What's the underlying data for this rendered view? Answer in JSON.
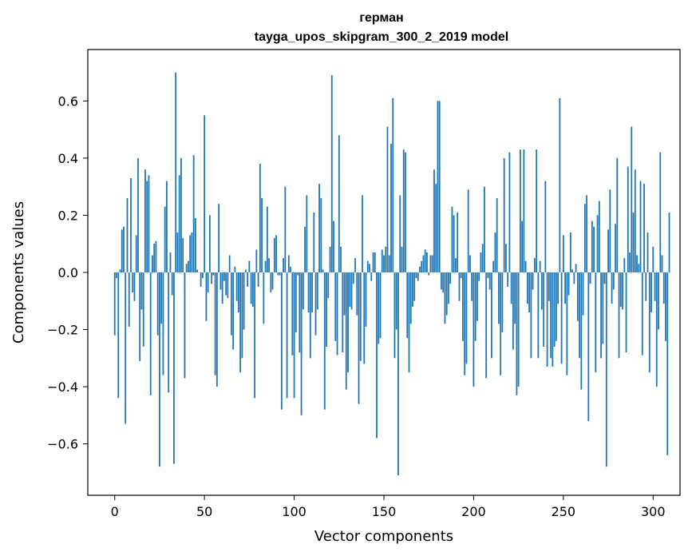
{
  "chart_data": {
    "type": "bar",
    "title": "герман",
    "subtitle": "tayga_upos_skipgram_300_2_2019 model",
    "xlabel": "Vector components",
    "ylabel": "Components values",
    "xlim": [
      -15,
      315
    ],
    "ylim": [
      -0.78,
      0.78
    ],
    "x_ticks": [
      0,
      50,
      100,
      150,
      200,
      250,
      300
    ],
    "y_ticks": [
      -0.6,
      -0.4,
      -0.2,
      0.0,
      0.2,
      0.4,
      0.6
    ],
    "y_tick_labels": [
      "−0.6",
      "−0.4",
      "−0.2",
      "0.0",
      "0.2",
      "0.4",
      "0.6"
    ],
    "x_tick_labels": [
      "0",
      "50",
      "100",
      "150",
      "200",
      "250",
      "300"
    ],
    "bar_color": "#1f77b4",
    "grid": false,
    "values": [
      -0.22,
      -0.02,
      -0.44,
      0.01,
      0.15,
      0.16,
      -0.53,
      0.26,
      -0.19,
      0.33,
      -0.07,
      -0.1,
      0.13,
      0.4,
      -0.31,
      -0.13,
      -0.26,
      0.36,
      0.32,
      0.34,
      -0.43,
      0.06,
      0.1,
      0.11,
      -0.22,
      -0.68,
      -0.18,
      -0.36,
      0.23,
      0.32,
      -0.42,
      0.07,
      -0.08,
      -0.67,
      0.7,
      0.14,
      0.34,
      0.4,
      0.12,
      -0.37,
      0.03,
      0.04,
      0.13,
      0.14,
      0.41,
      0.19,
      0.01,
      0.0,
      -0.05,
      -0.02,
      0.55,
      -0.17,
      -0.07,
      0.2,
      -0.04,
      -0.01,
      -0.36,
      -0.4,
      0.24,
      -0.06,
      -0.11,
      -0.03,
      -0.08,
      -0.09,
      0.06,
      -0.22,
      -0.27,
      0.02,
      -0.1,
      -0.14,
      -0.35,
      -0.3,
      -0.2,
      0.01,
      -0.05,
      0.04,
      -0.11,
      -0.12,
      -0.44,
      0.08,
      -0.05,
      0.38,
      0.26,
      -0.18,
      0.04,
      0.23,
      0.05,
      -0.07,
      -0.06,
      0.12,
      0.13,
      -0.01,
      -0.01,
      -0.48,
      0.05,
      0.3,
      -0.44,
      0.06,
      0.02,
      -0.29,
      -0.44,
      -0.21,
      -0.01,
      -0.28,
      -0.5,
      -0.13,
      0.16,
      0.27,
      -0.14,
      -0.3,
      -0.14,
      0.21,
      -0.22,
      -0.13,
      0.31,
      0.26,
      0.01,
      -0.48,
      -0.26,
      -0.09,
      0.09,
      0.69,
      0.18,
      -0.24,
      -0.29,
      0.48,
      0.09,
      -0.28,
      -0.15,
      -0.41,
      -0.35,
      -0.12,
      -0.13,
      -0.04,
      0.05,
      -0.15,
      -0.46,
      -0.31,
      0.27,
      -0.32,
      -0.19,
      0.04,
      0.03,
      -0.03,
      0.07,
      0.07,
      -0.58,
      -0.25,
      -0.23,
      0.08,
      0.06,
      0.09,
      0.51,
      0.06,
      0.45,
      0.61,
      -0.3,
      -0.2,
      -0.71,
      0.27,
      0.09,
      0.43,
      0.42,
      -0.23,
      -0.35,
      -0.18,
      -0.12,
      -0.1,
      -0.02,
      -0.03,
      0.02,
      0.04,
      0.06,
      0.08,
      0.07,
      -0.01,
      0.06,
      0.06,
      0.36,
      0.31,
      0.6,
      0.6,
      -0.06,
      -0.07,
      -0.18,
      -0.15,
      -0.11,
      -0.04,
      0.23,
      0.2,
      0.05,
      0.21,
      -0.1,
      -0.02,
      -0.24,
      -0.36,
      -0.32,
      0.29,
      0.06,
      -0.1,
      -0.4,
      -0.24,
      -0.17,
      -0.03,
      0.07,
      0.1,
      0.3,
      -0.37,
      -0.02,
      -0.06,
      -0.3,
      0.04,
      0.14,
      0.26,
      -0.18,
      -0.36,
      -0.21,
      0.4,
      0.1,
      -0.05,
      0.42,
      -0.11,
      -0.27,
      -0.18,
      -0.43,
      -0.4,
      0.43,
      0.18,
      0.43,
      0.04,
      -0.11,
      -0.14,
      -0.3,
      -0.06,
      0.05,
      0.43,
      -0.3,
      0.04,
      -0.13,
      -0.26,
      0.32,
      -0.33,
      -0.1,
      -0.3,
      -0.33,
      -0.26,
      -0.24,
      -0.11,
      0.61,
      -0.32,
      0.13,
      -0.11,
      -0.36,
      -0.08,
      0.14,
      0.01,
      -0.04,
      0.03,
      -0.17,
      -0.3,
      -0.41,
      -0.15,
      0.24,
      0.27,
      -0.52,
      -0.04,
      0.18,
      0.16,
      -0.35,
      0.2,
      0.25,
      -0.3,
      -0.25,
      -0.04,
      -0.68,
      0.15,
      0.29,
      -0.11,
      -0.06,
      0.17,
      0.4,
      -0.3,
      -0.12,
      -0.13,
      0.05,
      -0.28,
      0.37,
      0.07,
      0.51,
      0.21,
      0.36,
      0.06,
      0.03,
      0.32,
      -0.29,
      0.31,
      -0.1,
      0.14,
      -0.35,
      -0.14,
      0.09,
      -0.1,
      -0.4,
      -0.2,
      0.42,
      0.06,
      -0.11,
      -0.24,
      -0.64,
      0.21
    ]
  }
}
